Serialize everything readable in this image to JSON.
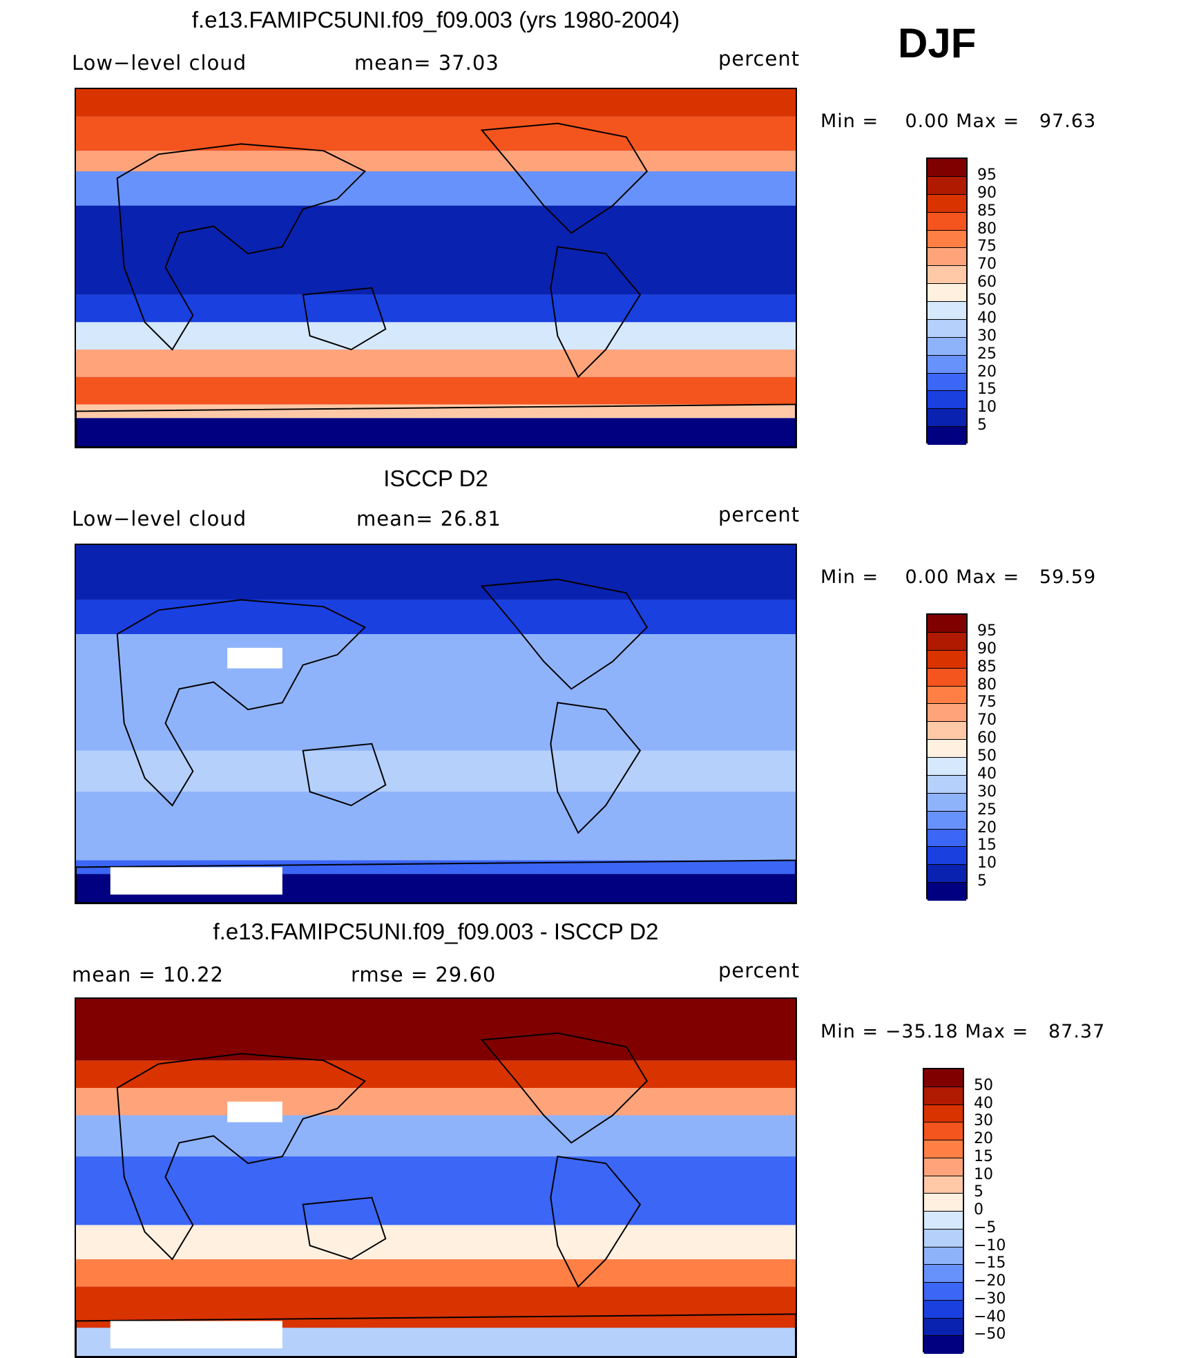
{
  "season": "DJF",
  "panels": [
    {
      "title": "f.e13.FAMIPC5UNI.f09_f09.003 (yrs 1980-2004)",
      "left_label": "Low−level cloud",
      "mid_label": "mean=   37.03",
      "right_label": "percent",
      "minmax": "Min =    0.00 Max =   97.63",
      "scheme": "model",
      "colorbar": {
        "colors": [
          "#800000",
          "#b01a00",
          "#d93300",
          "#f4541e",
          "#ff7f45",
          "#ffa47a",
          "#ffc9a8",
          "#fff0e0",
          "#d6e8fb",
          "#b5d0fb",
          "#8fb3fb",
          "#6892fb",
          "#3c66f5",
          "#1a40e0",
          "#0a22b0",
          "#000080"
        ],
        "labels": [
          "95",
          "90",
          "85",
          "80",
          "75",
          "70",
          "60",
          "50",
          "40",
          "30",
          "25",
          "20",
          "15",
          "10",
          "5"
        ]
      }
    },
    {
      "title": "ISCCP D2",
      "left_label": "Low−level cloud",
      "mid_label": "mean=   26.81",
      "right_label": "percent",
      "minmax": "Min =    0.00 Max =   59.59",
      "scheme": "obs",
      "colorbar": {
        "colors": [
          "#800000",
          "#b01a00",
          "#d93300",
          "#f4541e",
          "#ff7f45",
          "#ffa47a",
          "#ffc9a8",
          "#fff0e0",
          "#d6e8fb",
          "#b5d0fb",
          "#8fb3fb",
          "#6892fb",
          "#3c66f5",
          "#1a40e0",
          "#0a22b0",
          "#000080"
        ],
        "labels": [
          "95",
          "90",
          "85",
          "80",
          "75",
          "70",
          "60",
          "50",
          "40",
          "30",
          "25",
          "20",
          "15",
          "10",
          "5"
        ]
      }
    },
    {
      "title": "f.e13.FAMIPC5UNI.f09_f09.003 - ISCCP D2",
      "left_label": "mean  =    10.22",
      "mid_label": "rmse  =    29.60",
      "right_label": "percent",
      "minmax": "Min = −35.18 Max =   87.37",
      "scheme": "diff",
      "colorbar": {
        "colors": [
          "#800000",
          "#b01a00",
          "#d93300",
          "#f4541e",
          "#ff7f45",
          "#ffa47a",
          "#ffc9a8",
          "#fff0e0",
          "#d6e8fb",
          "#b5d0fb",
          "#8fb3fb",
          "#6892fb",
          "#3c66f5",
          "#1a40e0",
          "#0a22b0",
          "#000080"
        ],
        "labels": [
          "50",
          "40",
          "30",
          "20",
          "15",
          "10",
          "5",
          "0",
          "−5",
          "−10",
          "−15",
          "−20",
          "−30",
          "−40",
          "−50"
        ]
      }
    }
  ]
}
